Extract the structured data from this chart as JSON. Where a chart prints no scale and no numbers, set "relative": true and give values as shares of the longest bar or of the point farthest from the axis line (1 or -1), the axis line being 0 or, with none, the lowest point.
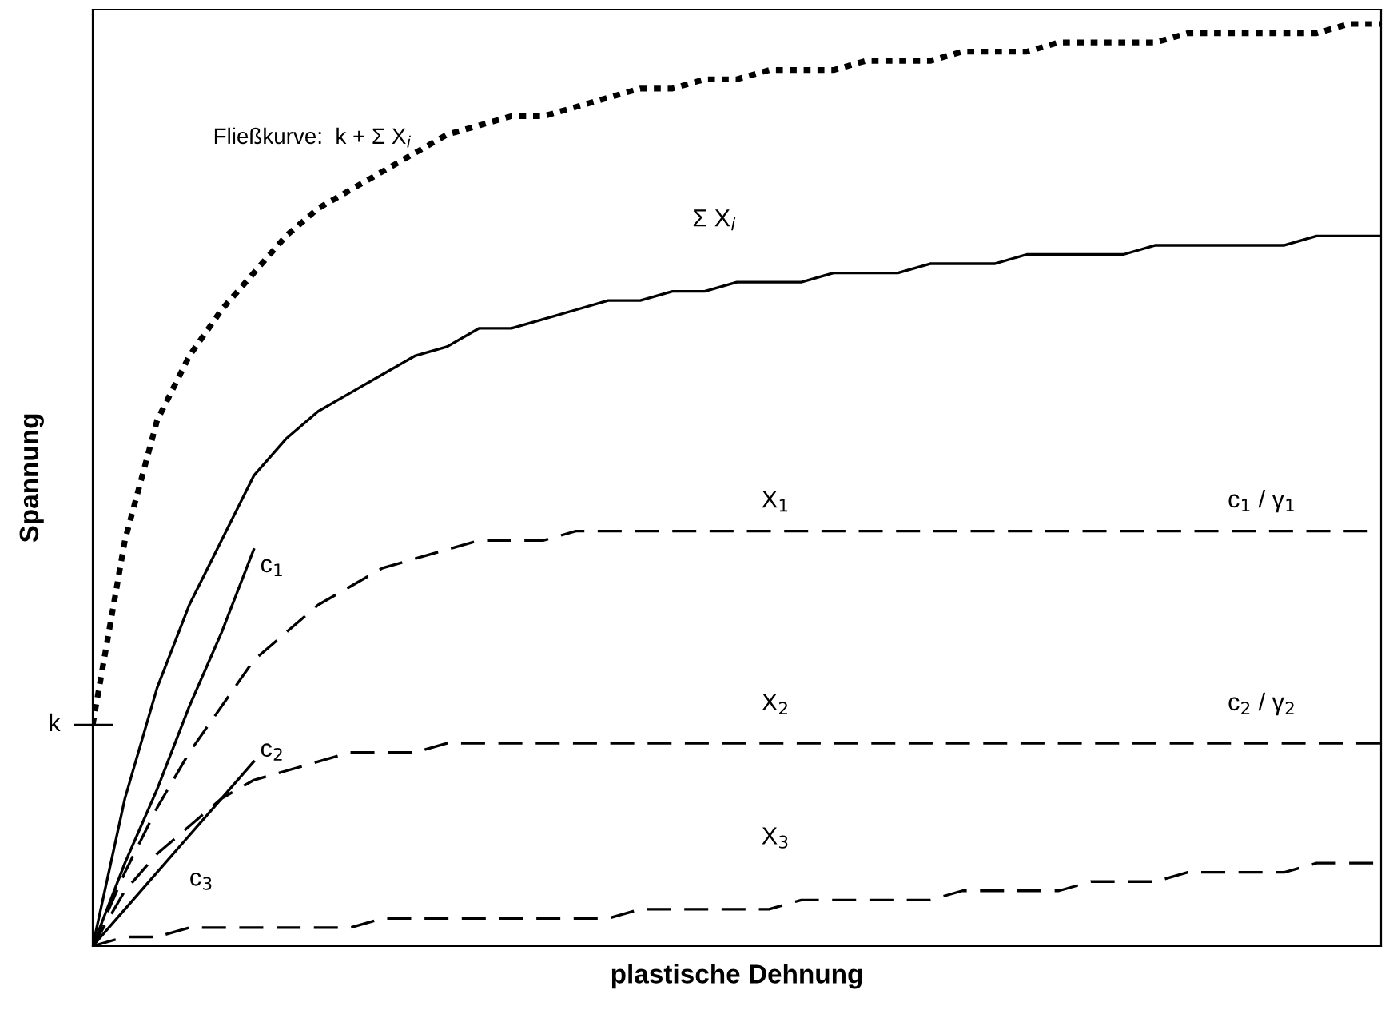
{
  "chart_data": {
    "type": "line",
    "relative": true,
    "xlabel": "plastische Dehnung",
    "ylabel": "Spannung",
    "legend": false,
    "marker": "none",
    "categories": [
      null,
      null,
      null,
      null,
      null,
      null,
      null,
      null,
      null,
      null,
      null,
      null,
      null,
      null,
      null,
      null,
      null,
      null,
      null,
      null,
      null,
      null,
      null,
      null,
      null,
      null,
      null,
      null,
      null,
      null,
      null,
      null,
      null,
      null,
      null,
      null,
      null,
      null,
      null,
      null,
      null
    ],
    "series": [
      {
        "name": "Fließkurve:  k + Σ X$_{i}$",
        "color": "#000000",
        "line_style": "dotted",
        "values": [
          0.24,
          0.44,
          0.57,
          0.64,
          0.69,
          0.73,
          0.77,
          0.8,
          0.82,
          0.84,
          0.86,
          0.88,
          0.89,
          0.9,
          0.9,
          0.91,
          0.92,
          0.93,
          0.93,
          0.94,
          0.94,
          0.95,
          0.95,
          0.95,
          0.96,
          0.96,
          0.96,
          0.97,
          0.97,
          0.97,
          0.98,
          0.98,
          0.98,
          0.98,
          0.99,
          0.99,
          0.99,
          0.99,
          0.99,
          1.0,
          1.0
        ]
      },
      {
        "name": "Σ X$_{i}$",
        "color": "#000000",
        "line_style": "solid",
        "values": [
          0,
          0.16,
          0.28,
          0.37,
          0.44,
          0.51,
          0.55,
          0.58,
          0.6,
          0.62,
          0.64,
          0.65,
          0.67,
          0.67,
          0.68,
          0.69,
          0.7,
          0.7,
          0.71,
          0.71,
          0.72,
          0.72,
          0.72,
          0.73,
          0.73,
          0.73,
          0.74,
          0.74,
          0.74,
          0.75,
          0.75,
          0.75,
          0.75,
          0.76,
          0.76,
          0.76,
          0.76,
          0.76,
          0.77,
          0.77,
          0.77
        ]
      },
      {
        "name": "X$_{1}$",
        "color": "#000000",
        "line_style": "dashed",
        "values": [
          0,
          0.08,
          0.15,
          0.21,
          0.26,
          0.31,
          0.34,
          0.37,
          0.39,
          0.41,
          0.42,
          0.43,
          0.44,
          0.44,
          0.44,
          0.45,
          0.45,
          0.45,
          0.45,
          0.45,
          0.45,
          0.45,
          0.45,
          0.45,
          0.45,
          0.45,
          0.45,
          0.45,
          0.45,
          0.45,
          0.45,
          0.45,
          0.45,
          0.45,
          0.45,
          0.45,
          0.45,
          0.45,
          0.45,
          0.45,
          0.45
        ]
      },
      {
        "name": "X$_{2}$",
        "color": "#000000",
        "line_style": "dashed",
        "values": [
          0,
          0.06,
          0.1,
          0.13,
          0.16,
          0.18,
          0.19,
          0.2,
          0.21,
          0.21,
          0.21,
          0.22,
          0.22,
          0.22,
          0.22,
          0.22,
          0.22,
          0.22,
          0.22,
          0.22,
          0.22,
          0.22,
          0.22,
          0.22,
          0.22,
          0.22,
          0.22,
          0.22,
          0.22,
          0.22,
          0.22,
          0.22,
          0.22,
          0.22,
          0.22,
          0.22,
          0.22,
          0.22,
          0.22,
          0.22,
          0.22
        ]
      },
      {
        "name": "X$_{3}$",
        "color": "#000000",
        "line_style": "dashed",
        "values": [
          0,
          0.01,
          0.01,
          0.02,
          0.02,
          0.02,
          0.02,
          0.02,
          0.02,
          0.03,
          0.03,
          0.03,
          0.03,
          0.03,
          0.03,
          0.03,
          0.03,
          0.04,
          0.04,
          0.04,
          0.04,
          0.04,
          0.05,
          0.05,
          0.05,
          0.05,
          0.05,
          0.06,
          0.06,
          0.06,
          0.06,
          0.07,
          0.07,
          0.07,
          0.08,
          0.08,
          0.08,
          0.08,
          0.09,
          0.09,
          0.09
        ]
      },
      {
        "name": "c$_{1}$",
        "color": "#000000",
        "line_style": "solid",
        "values": [
          0,
          0.09,
          0.17,
          0.26,
          0.34,
          0.43,
          null,
          null,
          null,
          null,
          null,
          null,
          null,
          null,
          null,
          null,
          null,
          null,
          null,
          null,
          null,
          null,
          null,
          null,
          null,
          null,
          null,
          null,
          null,
          null,
          null,
          null,
          null,
          null,
          null,
          null,
          null,
          null,
          null,
          null,
          null
        ]
      },
      {
        "name": "c$_{2}$",
        "color": "#000000",
        "line_style": "solid",
        "values": [
          0,
          0.04,
          0.08,
          0.12,
          0.16,
          0.2,
          null,
          null,
          null,
          null,
          null,
          null,
          null,
          null,
          null,
          null,
          null,
          null,
          null,
          null,
          null,
          null,
          null,
          null,
          null,
          null,
          null,
          null,
          null,
          null,
          null,
          null,
          null,
          null,
          null,
          null,
          null,
          null,
          null,
          null,
          null
        ]
      }
    ],
    "annotations": [
      "c$_{3}$",
      "c$_{1}$ / γ$_{1}$",
      "c$_{2}$ / γ$_{2}$",
      "k"
    ]
  }
}
